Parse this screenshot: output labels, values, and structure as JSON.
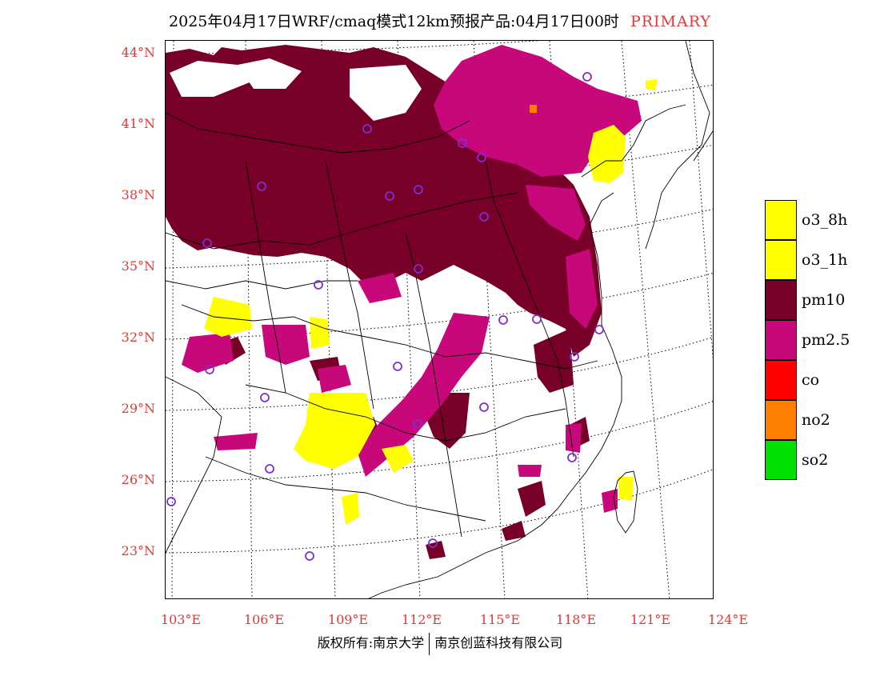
{
  "title": {
    "main": "2025年04月17日WRF/cmaq模式12km预报产品:04月17日00时",
    "tag": "PRIMARY"
  },
  "colors": {
    "tag": "#e03a3a",
    "axis_labels": "#e03a3a",
    "o3_8h": "#ffff00",
    "o3_1h": "#ffff00",
    "pm10": "#780028",
    "pm2_5": "#c8087a",
    "co": "#ff0000",
    "no2": "#ff7f00",
    "so2": "#00e000",
    "station_marker": "#7b2fd6"
  },
  "lat_labels": [
    "44°N",
    "41°N",
    "38°N",
    "35°N",
    "32°N",
    "29°N",
    "26°N",
    "23°N"
  ],
  "lon_labels": [
    "103°E",
    "106°E",
    "109°E",
    "112°E",
    "115°E",
    "118°E",
    "121°E",
    "124°E"
  ],
  "legend": [
    {
      "label": "o3_8h",
      "color": "#ffff00"
    },
    {
      "label": "o3_1h",
      "color": "#ffff00"
    },
    {
      "label": "pm10",
      "color": "#780028"
    },
    {
      "label": "pm2.5",
      "color": "#c8087a"
    },
    {
      "label": "co",
      "color": "#ff0000"
    },
    {
      "label": "no2",
      "color": "#ff7f00"
    },
    {
      "label": "so2",
      "color": "#00e000"
    }
  ],
  "footer": {
    "left": "版权所有:南京大学",
    "right": "南京创蓝科技有限公司"
  },
  "map": {
    "primary_pollutant_field": "pm10 / pm2.5 / o3 shaded regions",
    "station_marker_icon": "circle-marker-icon"
  }
}
